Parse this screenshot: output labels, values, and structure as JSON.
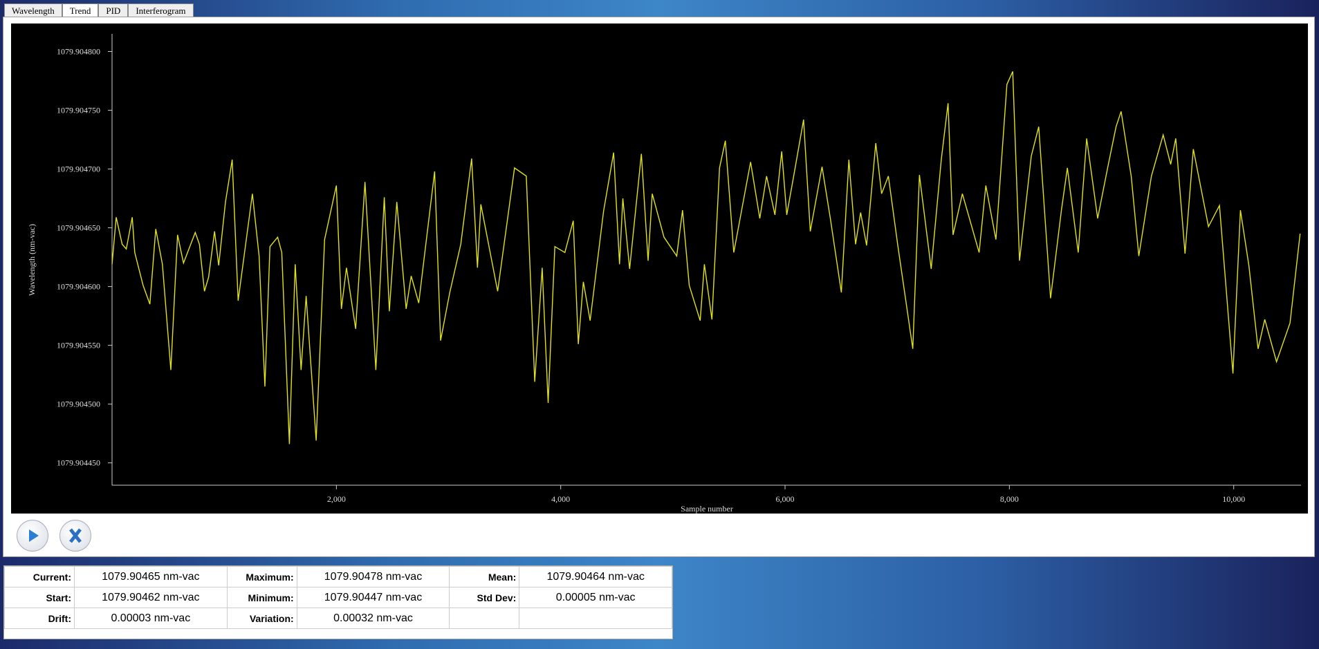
{
  "tabs": [
    "Wavelength",
    "Trend",
    "PID",
    "Interferogram"
  ],
  "chart_data": {
    "type": "line",
    "y_label": "Wavelength (nm-vac)",
    "x_label": "Sample number",
    "x": [
      0,
      37,
      90,
      127,
      180,
      202,
      277,
      337,
      390,
      449,
      524,
      584,
      637,
      742,
      779,
      824,
      861,
      914,
      951,
      1011,
      1071,
      1124,
      1251,
      1311,
      1363,
      1408,
      1476,
      1513,
      1581,
      1633,
      1685,
      1730,
      1820,
      1895,
      2000,
      2045,
      2090,
      2172,
      2255,
      2352,
      2427,
      2472,
      2539,
      2622,
      2667,
      2734,
      2876,
      2929,
      3011,
      3109,
      3206,
      3258,
      3288,
      3438,
      3588,
      3693,
      3768,
      3835,
      3888,
      3948,
      4037,
      4112,
      4157,
      4202,
      4262,
      4382,
      4472,
      4524,
      4554,
      4614,
      4719,
      4779,
      4816,
      4921,
      5034,
      5086,
      5146,
      5243,
      5281,
      5348,
      5416,
      5468,
      5543,
      5693,
      5775,
      5835,
      5910,
      5970,
      6015,
      6090,
      6165,
      6225,
      6330,
      6404,
      6502,
      6569,
      6629,
      6674,
      6727,
      6809,
      6861,
      6921,
      7004,
      7139,
      7198,
      7303,
      7393,
      7453,
      7498,
      7581,
      7730,
      7790,
      7880,
      7978,
      8030,
      8090,
      8195,
      8262,
      8367,
      8464,
      8517,
      8614,
      8689,
      8787,
      8876,
      8951,
      8996,
      9086,
      9154,
      9266,
      9371,
      9438,
      9483,
      9566,
      9640,
      9775,
      9873,
      9993,
      10060,
      10135,
      10217,
      10277,
      10382,
      10502,
      10592
    ],
    "series": [
      {
        "name": "Wavelength",
        "color": "#e2e21c",
        "values": [
          1079.904619,
          1079.904659,
          1079.904636,
          1079.904632,
          1079.904659,
          1079.904629,
          1079.904601,
          1079.904585,
          1079.904649,
          1079.904619,
          1079.904529,
          1079.904644,
          1079.90462,
          1079.904646,
          1079.904636,
          1079.904596,
          1079.904608,
          1079.904647,
          1079.904618,
          1079.904672,
          1079.904708,
          1079.904588,
          1079.904679,
          1079.904626,
          1079.904515,
          1079.904634,
          1079.904642,
          1079.904629,
          1079.904466,
          1079.904619,
          1079.904529,
          1079.904592,
          1079.904469,
          1079.90464,
          1079.904686,
          1079.904581,
          1079.904616,
          1079.904564,
          1079.904689,
          1079.904529,
          1079.904676,
          1079.904579,
          1079.904672,
          1079.904581,
          1079.904609,
          1079.904586,
          1079.904698,
          1079.904554,
          1079.904595,
          1079.904636,
          1079.904709,
          1079.904616,
          1079.90467,
          1079.904596,
          1079.904701,
          1079.904694,
          1079.904519,
          1079.904616,
          1079.904501,
          1079.904634,
          1079.904629,
          1079.904656,
          1079.904551,
          1079.904604,
          1079.904571,
          1079.904664,
          1079.904714,
          1079.904619,
          1079.904675,
          1079.904615,
          1079.904713,
          1079.904622,
          1079.904679,
          1079.904642,
          1079.904626,
          1079.904665,
          1079.904601,
          1079.904571,
          1079.904619,
          1079.904572,
          1079.904701,
          1079.904724,
          1079.904629,
          1079.904706,
          1079.904658,
          1079.904694,
          1079.904661,
          1079.904715,
          1079.904661,
          1079.904701,
          1079.904742,
          1079.904647,
          1079.904702,
          1079.904658,
          1079.904595,
          1079.904708,
          1079.904636,
          1079.904663,
          1079.904635,
          1079.904722,
          1079.904679,
          1079.904694,
          1079.904636,
          1079.904547,
          1079.904695,
          1079.904615,
          1079.904708,
          1079.904756,
          1079.904644,
          1079.904679,
          1079.904629,
          1079.904686,
          1079.90464,
          1079.904772,
          1079.904783,
          1079.904622,
          1079.904711,
          1079.904736,
          1079.90459,
          1079.904665,
          1079.904701,
          1079.904629,
          1079.904726,
          1079.904658,
          1079.904701,
          1079.904736,
          1079.904749,
          1079.904694,
          1079.904626,
          1079.904694,
          1079.904729,
          1079.904704,
          1079.904726,
          1079.904628,
          1079.904717,
          1079.904651,
          1079.904669,
          1079.904526,
          1079.904665,
          1079.904618,
          1079.904547,
          1079.904572,
          1079.904536,
          1079.904569,
          1079.904645
        ]
      }
    ],
    "xlim": [
      0,
      10600
    ],
    "xticks": [
      {
        "value": 2000,
        "label": "2,000"
      },
      {
        "value": 4000,
        "label": "4,000"
      },
      {
        "value": 6000,
        "label": "6,000"
      },
      {
        "value": 8000,
        "label": "8,000"
      },
      {
        "value": 10000,
        "label": "10,000"
      }
    ],
    "ylim": [
      1079.904431,
      1079.904815
    ],
    "yticks": [
      {
        "value": 1079.90445,
        "label": "1079.904450"
      },
      {
        "value": 1079.9045,
        "label": "1079.904500"
      },
      {
        "value": 1079.90455,
        "label": "1079.904550"
      },
      {
        "value": 1079.9046,
        "label": "1079.904600"
      },
      {
        "value": 1079.90465,
        "label": "1079.904650"
      },
      {
        "value": 1079.9047,
        "label": "1079.904700"
      },
      {
        "value": 1079.90475,
        "label": "1079.904750"
      },
      {
        "value": 1079.9048,
        "label": "1079.904800"
      }
    ]
  },
  "stats": {
    "rows": [
      [
        "Current:",
        "1079.90465 nm-vac",
        "Maximum:",
        "1079.90478 nm-vac",
        "Mean:",
        "1079.90464 nm-vac"
      ],
      [
        "Start:",
        "1079.90462 nm-vac",
        "Minimum:",
        "1079.90447 nm-vac",
        "Std Dev:",
        "0.00005 nm-vac"
      ],
      [
        "Drift:",
        "0.00003 nm-vac",
        "Variation:",
        "0.00032 nm-vac",
        "",
        ""
      ]
    ]
  }
}
